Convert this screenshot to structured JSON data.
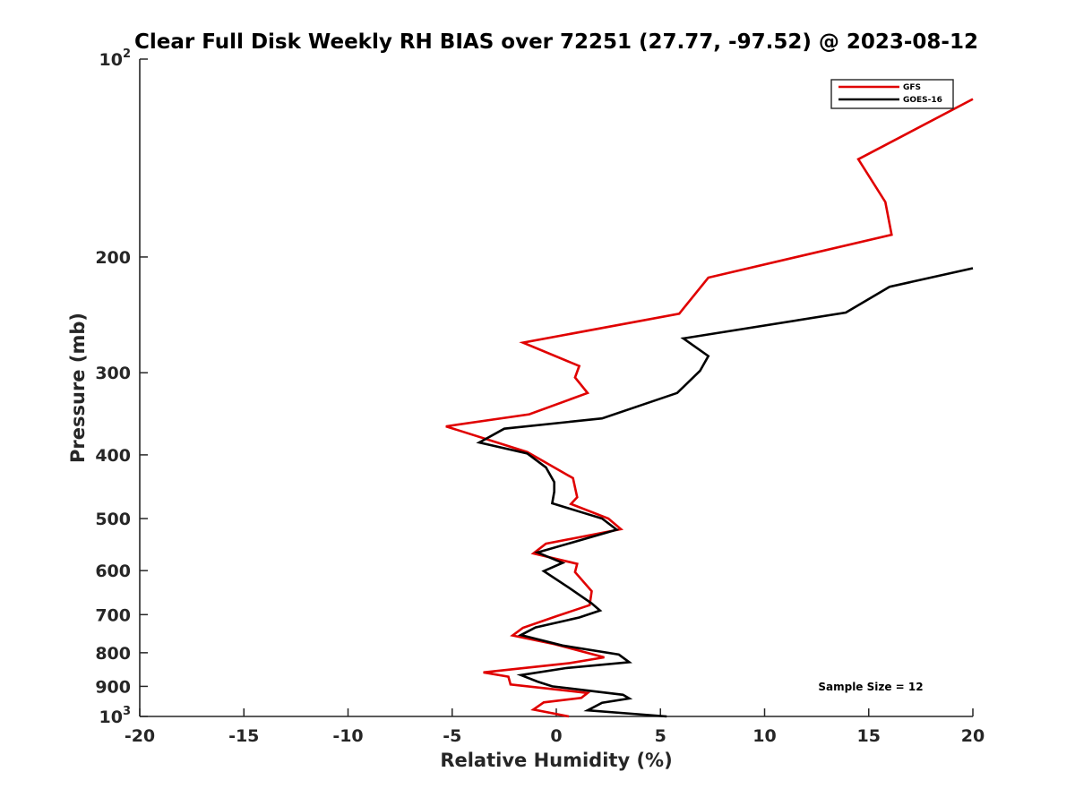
{
  "chart_data": {
    "type": "line",
    "title": "Clear Full Disk Weekly RH BIAS over 72251 (27.77, -97.52) @ 2023-08-12",
    "xlabel": "Relative Humidity (%)",
    "ylabel": "Pressure (mb)",
    "xlim": [
      -20,
      20
    ],
    "ylim": [
      100,
      1000
    ],
    "y_scale": "log",
    "y_reversed": true,
    "x_ticks": [
      -20,
      -15,
      -10,
      -5,
      0,
      5,
      10,
      15,
      20
    ],
    "x_tick_labels": [
      "-20",
      "-15",
      "-10",
      "-5",
      "0",
      "5",
      "10",
      "15",
      "20"
    ],
    "y_ticks": [
      {
        "value": 100,
        "base": "10",
        "exp": "2"
      },
      {
        "value": 200,
        "label": "200"
      },
      {
        "value": 300,
        "label": "300"
      },
      {
        "value": 400,
        "label": "400"
      },
      {
        "value": 500,
        "label": "500"
      },
      {
        "value": 600,
        "label": "600"
      },
      {
        "value": 700,
        "label": "700"
      },
      {
        "value": 800,
        "label": "800"
      },
      {
        "value": 900,
        "label": "900"
      },
      {
        "value": 1000,
        "base": "10",
        "exp": "3"
      }
    ],
    "grid": false,
    "legend_position": "top-right",
    "series": [
      {
        "name": "GFS",
        "color": "#e00000",
        "x": [
          20.0,
          14.5,
          15.8,
          16.1,
          7.3,
          5.9,
          -1.6,
          1.1,
          0.9,
          1.5,
          -1.3,
          -5.3,
          -1.4,
          0.8,
          1.0,
          0.7,
          2.5,
          3.1,
          -0.5,
          -1.1,
          1.0,
          0.9,
          1.7,
          1.6,
          0.0,
          -1.6,
          -2.1,
          -0.1,
          2.3,
          0.6,
          -3.5,
          -2.3,
          -2.2,
          1.5,
          1.2,
          -0.6,
          -1.1,
          0.6
        ],
        "y": [
          115,
          142,
          165,
          185,
          215,
          244,
          270,
          293,
          305,
          322,
          347,
          362,
          396,
          434,
          464,
          475,
          500,
          519,
          546,
          565,
          586,
          603,
          645,
          677,
          704,
          733,
          753,
          776,
          813,
          830,
          857,
          870,
          894,
          921,
          937,
          952,
          976,
          1000
        ]
      },
      {
        "name": "GOES-16",
        "color": "#000000",
        "x": [
          20.0,
          16.0,
          13.9,
          6.1,
          7.3,
          6.9,
          5.8,
          2.2,
          -2.5,
          -3.7,
          -1.4,
          -0.5,
          -0.1,
          -0.1,
          -0.2,
          2.2,
          2.9,
          -0.9,
          0.3,
          -0.6,
          0.6,
          1.7,
          2.1,
          1.1,
          -1.0,
          -1.7,
          0.3,
          3.0,
          3.5,
          0.5,
          -1.7,
          -0.9,
          -0.2,
          3.2,
          3.5,
          2.2,
          1.5,
          5.3
        ],
        "y": [
          208,
          222,
          243,
          266,
          283,
          298,
          322,
          352,
          365,
          383,
          398,
          418,
          440,
          455,
          474,
          500,
          520,
          563,
          584,
          601,
          637,
          673,
          690,
          707,
          732,
          752,
          780,
          805,
          827,
          844,
          865,
          885,
          900,
          927,
          939,
          953,
          979,
          1000
        ]
      }
    ],
    "annotation": "Sample Size = 12"
  }
}
